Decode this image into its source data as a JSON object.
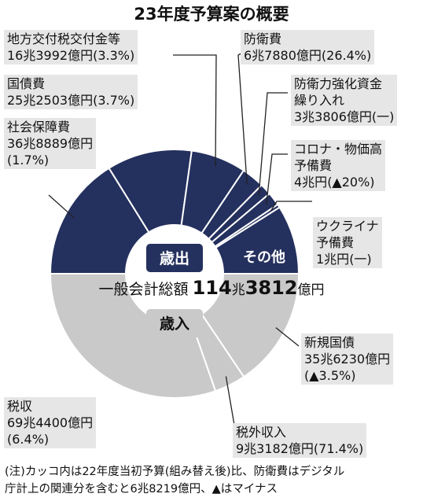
{
  "title": "23年度予算案の概要",
  "chart_data": {
    "type": "pie",
    "total": {
      "label": "一般会計総額",
      "value_cho": "114",
      "cho_unit": "兆",
      "value_oku": "3812",
      "oku_unit": "億円"
    },
    "expenditure": {
      "label": "歳出",
      "other_label": "その他",
      "slices": [
        {
          "name": "社会保障費",
          "amount": "36兆8889億円",
          "change": "(1.7%)",
          "value": 36.8889
        },
        {
          "name": "国債費",
          "amount": "25兆2503億円",
          "change": "(3.7%)",
          "value": 25.2503
        },
        {
          "name": "地方交付税交付金等",
          "amount": "16兆3992億円",
          "change": "(3.3%)",
          "value": 16.3992
        },
        {
          "name": "防衛費",
          "amount": "6兆7880億円",
          "change": "(26.4%)",
          "value": 6.788
        },
        {
          "name": "防衛力強化資金繰り入れ",
          "name_lines": [
            "防衛力強化資金",
            "繰り入れ"
          ],
          "amount": "3兆3806億円",
          "change": "(一)",
          "value": 3.3806
        },
        {
          "name": "コロナ・物価高予備費",
          "name_lines": [
            "コロナ・物価高",
            "予備費"
          ],
          "amount": "4兆円",
          "change": "(▲20%)",
          "value": 4.0
        },
        {
          "name": "ウクライナ予備費",
          "name_lines": [
            "ウクライナ",
            "予備費"
          ],
          "amount": "1兆円",
          "change": "(一)",
          "value": 1.0
        },
        {
          "name": "その他",
          "value": 20.4742
        }
      ]
    },
    "revenue": {
      "label": "歳入",
      "slices": [
        {
          "name": "税収",
          "amount": "69兆4400億円",
          "change": "(6.4%)",
          "value": 69.44
        },
        {
          "name": "税外収入",
          "amount": "9兆3182億円",
          "change": "(71.4%)",
          "value": 9.3182
        },
        {
          "name": "新規国債",
          "amount": "35兆6230億円",
          "change": "(▲3.5%)",
          "value": 35.623
        }
      ]
    }
  },
  "note": {
    "line1": "(注)カッコ内は22年度当初予算(組み替え後)比、防衛費はデジタル",
    "line2": "庁計上の関連分を含むと6兆8219億円、▲はマイナス"
  },
  "colors": {
    "expenditure": "#24305e",
    "revenue": "#c9c9c9",
    "label_bg": "#e6e6e6",
    "center_badge": "#c9c9c9"
  }
}
